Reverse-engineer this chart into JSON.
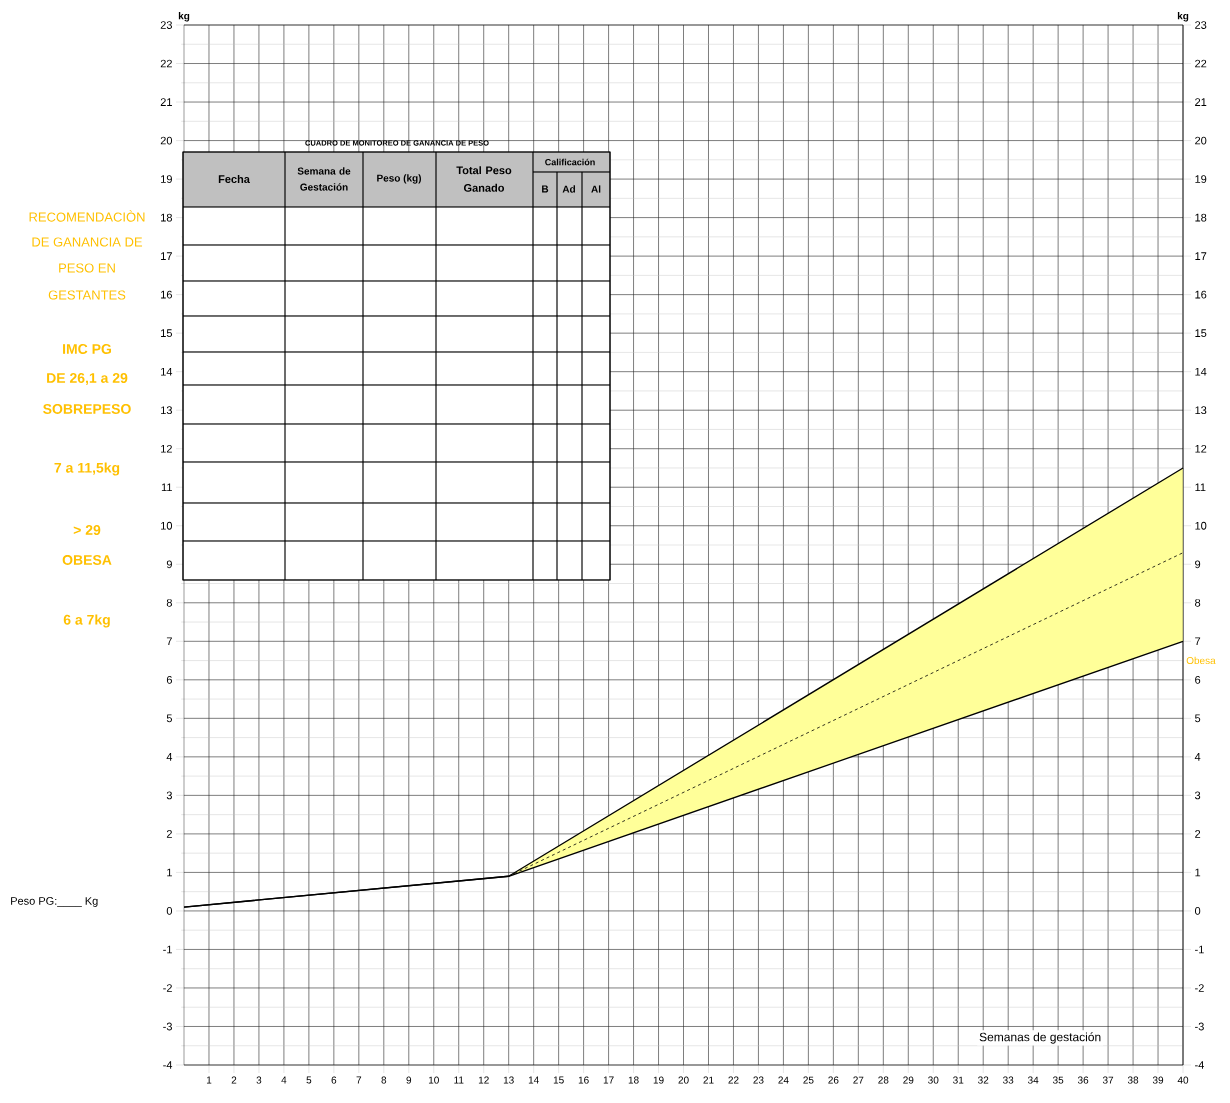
{
  "chart_data": {
    "type": "line",
    "xlabel": "Semanas de gestación",
    "ylabel": "kg",
    "y2label": "kg",
    "xlim": [
      0,
      40
    ],
    "xticks": [
      1,
      2,
      3,
      4,
      5,
      6,
      7,
      8,
      9,
      10,
      11,
      12,
      13,
      14,
      15,
      16,
      17,
      18,
      19,
      20,
      21,
      22,
      23,
      24,
      25,
      26,
      27,
      28,
      29,
      30,
      31,
      32,
      33,
      34,
      35,
      36,
      37,
      38,
      39,
      40
    ],
    "ylim": [
      -4,
      23
    ],
    "yticks": [
      -4,
      -3,
      -2,
      -1,
      0,
      1,
      2,
      3,
      4,
      5,
      6,
      7,
      8,
      9,
      10,
      11,
      12,
      13,
      14,
      15,
      16,
      17,
      18,
      19,
      20,
      21,
      22,
      23
    ],
    "y2lim": [
      -4,
      23
    ],
    "y2ticks": [
      -4,
      -3,
      -2,
      -1,
      0,
      1,
      2,
      3,
      4,
      5,
      6,
      7,
      8,
      9,
      10,
      11,
      12,
      13,
      14,
      15,
      16,
      17,
      18,
      19,
      20,
      21,
      22,
      23
    ],
    "grid": true,
    "marker": "none",
    "series": [
      {
        "x": [
          0,
          13,
          40
        ],
        "values": [
          0.1,
          0.9,
          11.5
        ],
        "color": "#000000"
      },
      {
        "x": [
          0,
          13,
          40
        ],
        "values": [
          0.1,
          0.9,
          7
        ],
        "color": "#000000"
      },
      {
        "x": [
          13,
          40
        ],
        "values": [
          0.9,
          9.3
        ],
        "color": "#000000",
        "line_style": "dashed",
        "lower": [
          0.9,
          7
        ],
        "upper": [
          0.9,
          11.5
        ]
      }
    ],
    "annotations": [
      "RECOMENDACIÒN",
      "DE GANANCIA DE",
      "PESO EN",
      "GESTANTES",
      "IMC PG",
      "DE 26,1 a 29",
      "SOBREPESO",
      "7 a 11,5kg",
      "> 29",
      "OBESA",
      "6 a 7kg",
      "Peso PG:____ Kg",
      "CUADRO DE MONITOREO DE GANANCIA DE PESO",
      "Fecha",
      "Semana de Gestación",
      "Peso (kg)",
      "Total Peso Ganado",
      "Calificación",
      "B",
      "Ad",
      "Al",
      "Obesa"
    ]
  }
}
